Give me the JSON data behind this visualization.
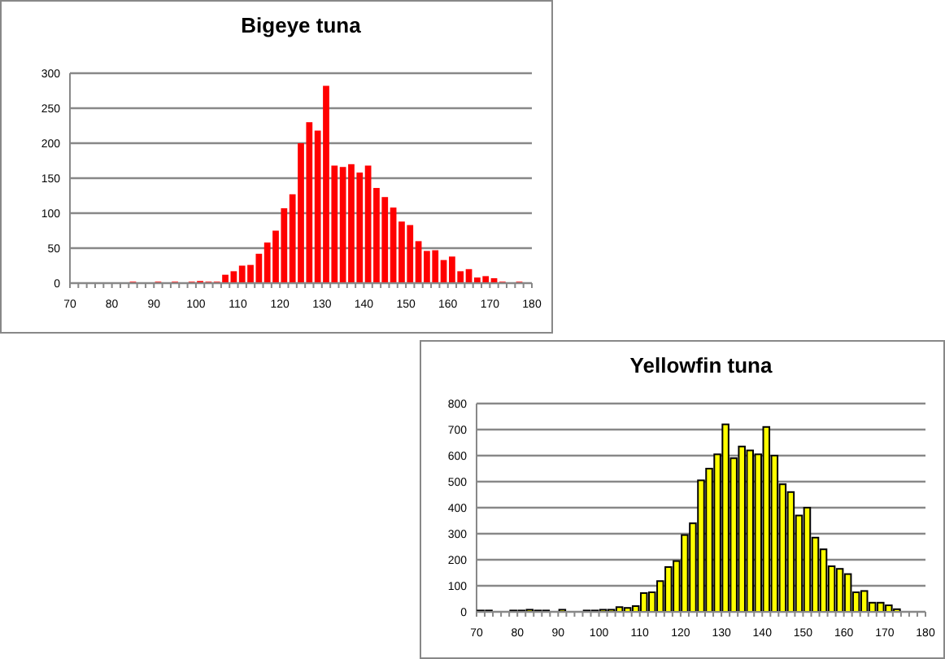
{
  "chart_data": [
    {
      "type": "histogram",
      "title": "Bigeye tuna",
      "color": "#ff0000",
      "bins": [
        70,
        72,
        74,
        76,
        78,
        80,
        82,
        84,
        86,
        88,
        90,
        92,
        94,
        96,
        98,
        100,
        102,
        104,
        106,
        108,
        110,
        112,
        114,
        116,
        118,
        120,
        122,
        124,
        126,
        128,
        130,
        132,
        134,
        136,
        138,
        140,
        142,
        144,
        146,
        148,
        150,
        152,
        154,
        156,
        158,
        160,
        162,
        164,
        166,
        168,
        170,
        172,
        174,
        176,
        178,
        180
      ],
      "values": [
        0,
        0,
        0,
        0,
        0,
        0,
        0,
        2,
        1,
        1,
        2,
        1,
        2,
        1,
        2,
        3,
        2,
        2,
        12,
        17,
        25,
        26,
        42,
        58,
        75,
        107,
        127,
        200,
        230,
        218,
        282,
        168,
        166,
        170,
        158,
        168,
        136,
        123,
        108,
        88,
        83,
        60,
        46,
        47,
        33,
        38,
        17,
        20,
        8,
        10,
        7,
        2,
        1,
        2,
        1
      ],
      "xlim": [
        70,
        180
      ],
      "xticks": [
        70,
        80,
        90,
        100,
        110,
        120,
        130,
        140,
        150,
        160,
        170,
        180
      ],
      "ylim": [
        0,
        300
      ],
      "yticks": [
        0,
        50,
        100,
        150,
        200,
        250,
        300
      ],
      "grid": "y"
    },
    {
      "type": "histogram",
      "title": "Yellowfin tuna",
      "color": "#ffff00",
      "bins": [
        70,
        72,
        74,
        76,
        78,
        80,
        82,
        84,
        86,
        88,
        90,
        92,
        94,
        96,
        98,
        100,
        102,
        104,
        106,
        108,
        110,
        112,
        114,
        116,
        118,
        120,
        122,
        124,
        126,
        128,
        130,
        132,
        134,
        136,
        138,
        140,
        142,
        144,
        146,
        148,
        150,
        152,
        154,
        156,
        158,
        160,
        162,
        164,
        166,
        168,
        170,
        172,
        174,
        176,
        178,
        180
      ],
      "values": [
        5,
        5,
        0,
        0,
        5,
        5,
        8,
        5,
        5,
        0,
        8,
        0,
        0,
        5,
        5,
        8,
        8,
        18,
        15,
        22,
        72,
        75,
        118,
        172,
        195,
        295,
        340,
        505,
        550,
        605,
        720,
        590,
        635,
        620,
        605,
        710,
        600,
        490,
        460,
        370,
        400,
        285,
        240,
        175,
        165,
        145,
        75,
        80,
        35,
        35,
        25,
        10,
        null,
        null,
        null
      ],
      "xlim": [
        70,
        180
      ],
      "xticks": [
        70,
        80,
        90,
        100,
        110,
        120,
        130,
        140,
        150,
        160,
        170,
        180
      ],
      "ylim": [
        0,
        800
      ],
      "yticks": [
        0,
        100,
        200,
        300,
        400,
        500,
        600,
        700,
        800
      ],
      "grid": "y"
    }
  ]
}
